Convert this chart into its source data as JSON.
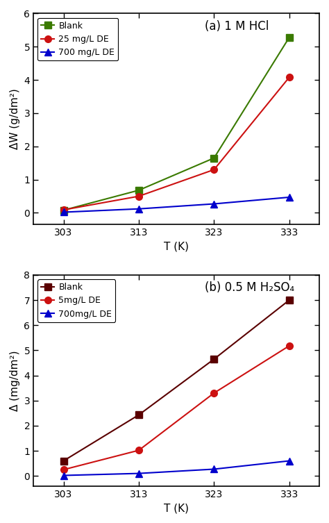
{
  "temp": [
    303,
    313,
    323,
    333
  ],
  "panel_a": {
    "title": "(a) 1 M HCl",
    "ylabel": "ΔW (g/dm²)",
    "xlabel": "T (K)",
    "ylim": [
      -0.35,
      6
    ],
    "yticks": [
      0,
      1,
      2,
      3,
      4,
      5,
      6
    ],
    "series": [
      {
        "label": "Blank",
        "values": [
          0.08,
          0.68,
          1.65,
          5.28
        ],
        "color": "#3a7a00",
        "marker": "s",
        "markercolor": "#3a7a00"
      },
      {
        "label": "25 mg/L DE",
        "values": [
          0.09,
          0.5,
          1.3,
          4.08
        ],
        "color": "#cc1111",
        "marker": "o",
        "markercolor": "#cc1111"
      },
      {
        "label": "700 mg/L DE",
        "values": [
          0.02,
          0.12,
          0.27,
          0.47
        ],
        "color": "#0000cc",
        "marker": "^",
        "markercolor": "#0000cc"
      }
    ]
  },
  "panel_b": {
    "title": "(b) 0.5 M H₂SO₄",
    "ylabel": "Δ (mg/dm²)",
    "xlabel": "T (K)",
    "ylim": [
      -0.4,
      8
    ],
    "yticks": [
      0,
      1,
      2,
      3,
      4,
      5,
      6,
      7,
      8
    ],
    "series": [
      {
        "label": "Blank",
        "values": [
          0.6,
          2.43,
          4.65,
          7.0
        ],
        "color": "#5a0000",
        "marker": "s",
        "markercolor": "#5a0000"
      },
      {
        "label": "5mg/L DE",
        "values": [
          0.25,
          1.02,
          3.3,
          5.18
        ],
        "color": "#cc1111",
        "marker": "o",
        "markercolor": "#cc1111"
      },
      {
        "label": "700mg/L DE",
        "values": [
          0.02,
          0.1,
          0.27,
          0.6
        ],
        "color": "#0000cc",
        "marker": "^",
        "markercolor": "#0000cc"
      }
    ]
  },
  "background_color": "#ffffff",
  "marker_size": 7,
  "linewidth": 1.5,
  "legend_fontsize": 9,
  "label_fontsize": 11,
  "tick_fontsize": 10,
  "title_fontsize": 12
}
